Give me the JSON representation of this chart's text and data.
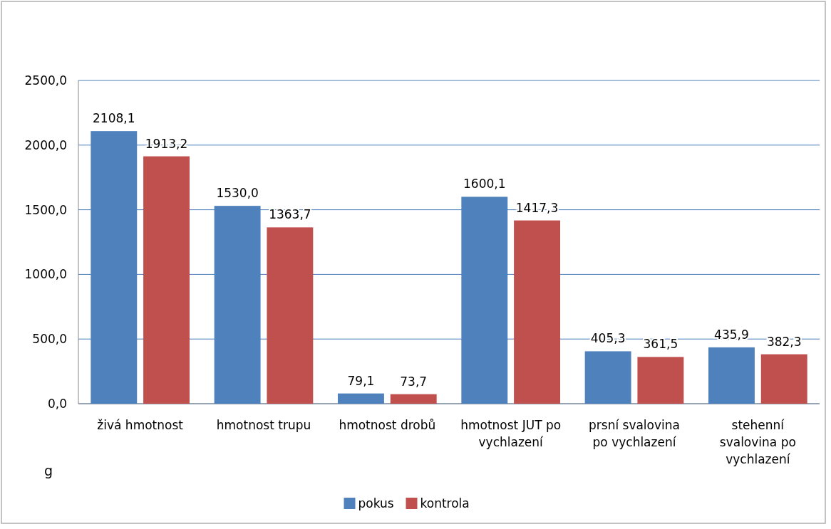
{
  "chart_data": {
    "type": "bar",
    "ylabel": "g",
    "categories": [
      "živá hmotnost",
      "hmotnost trupu",
      "hmotnost drobů",
      "hmotnost JUT po vychlazení",
      "prsní svalovina po vychlazení",
      "stehenní svalovina po vychlazení"
    ],
    "series": [
      {
        "name": "pokus",
        "color": "#4f81bd",
        "values": [
          2108.1,
          1530.0,
          79.1,
          1600.1,
          405.3,
          435.9
        ],
        "value_labels": [
          "2108,1",
          "1530,0",
          "79,1",
          "1600,1",
          "405,3",
          "435,9"
        ]
      },
      {
        "name": "kontrola",
        "color": "#c0504d",
        "values": [
          1913.2,
          1363.7,
          73.7,
          1417.3,
          361.5,
          382.3
        ],
        "value_labels": [
          "1913,2",
          "1363,7",
          "73,7",
          "1417,3",
          "361,5",
          "382,3"
        ]
      }
    ],
    "ylim": [
      0,
      2500
    ],
    "yticks": [
      {
        "value": 0,
        "label": "0,0"
      },
      {
        "value": 500,
        "label": "500,0"
      },
      {
        "value": 1000,
        "label": "1000,0"
      },
      {
        "value": 1500,
        "label": "1500,0"
      },
      {
        "value": 2000,
        "label": "2000,0"
      },
      {
        "value": 2500,
        "label": "2500,0"
      }
    ],
    "grid": "y",
    "legend": "bottom"
  }
}
